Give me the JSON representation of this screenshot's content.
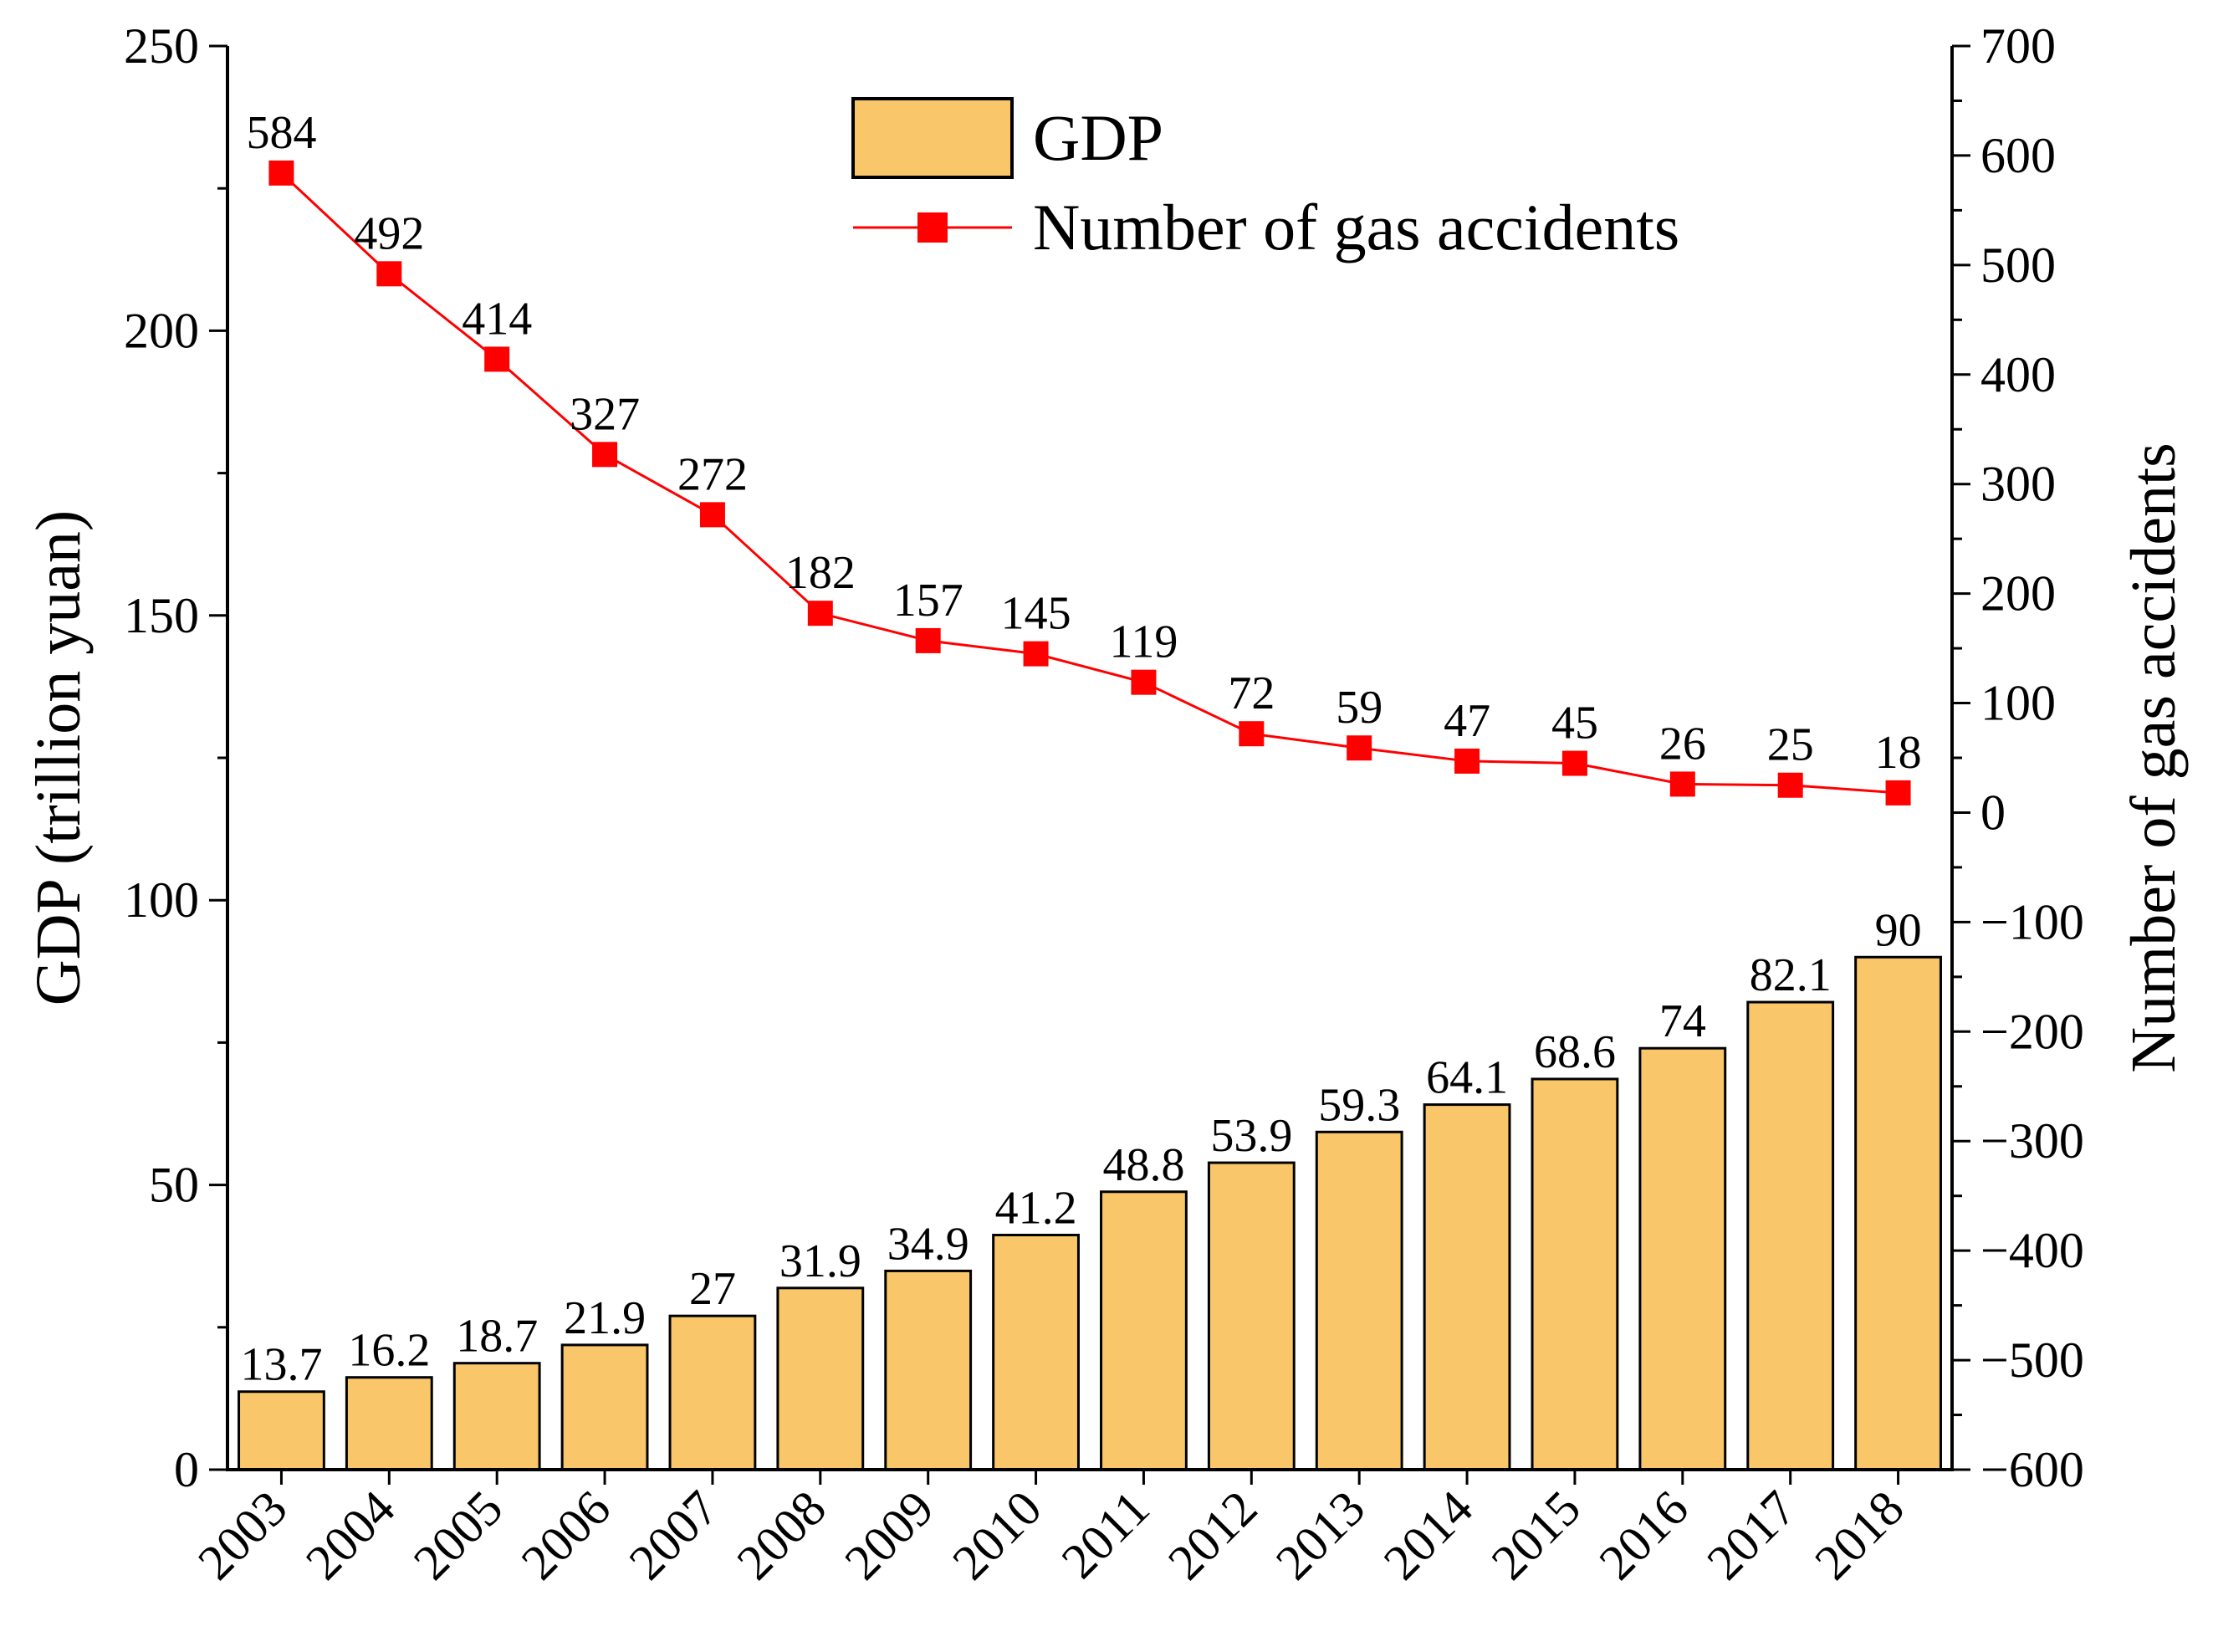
{
  "chart_data": {
    "type": "bar",
    "categories": [
      "2003",
      "2004",
      "2005",
      "2006",
      "2007",
      "2008",
      "2009",
      "2010",
      "2011",
      "2012",
      "2013",
      "2014",
      "2015",
      "2016",
      "2017",
      "2018"
    ],
    "series": [
      {
        "name": "GDP",
        "type": "bar",
        "axis": "left",
        "color": "#F9C76A",
        "values": [
          13.7,
          16.2,
          18.7,
          21.9,
          27,
          31.9,
          34.9,
          41.2,
          48.8,
          53.9,
          59.3,
          64.1,
          68.6,
          74,
          82.1,
          90
        ],
        "labels": [
          "13.7",
          "16.2",
          "18.7",
          "21.9",
          "27",
          "31.9",
          "34.9",
          "41.2",
          "48.8",
          "53.9",
          "59.3",
          "64.1",
          "68.6",
          "74",
          "82.1",
          "90"
        ]
      },
      {
        "name": "Number of gas accidents",
        "type": "line",
        "axis": "right",
        "color": "#FF0000",
        "marker": "square",
        "values": [
          584,
          492,
          414,
          327,
          272,
          182,
          157,
          145,
          119,
          72,
          59,
          47,
          45,
          26,
          25,
          18
        ],
        "labels": [
          "584",
          "492",
          "414",
          "327",
          "272",
          "182",
          "157",
          "145",
          "119",
          "72",
          "59",
          "47",
          "45",
          "26",
          "25",
          "18"
        ]
      }
    ],
    "ylabel": "GDP (trillion yuan)",
    "y2label": "Number of gas accidents",
    "xlabel": "",
    "ylim": [
      0,
      250
    ],
    "y2lim": [
      -600,
      700
    ],
    "yticks": [
      "0",
      "50",
      "100",
      "150",
      "200",
      "250"
    ],
    "y2ticks": [
      "−600",
      "−500",
      "−400",
      "−300",
      "−200",
      "−100",
      "0",
      "100",
      "200",
      "300",
      "400",
      "500",
      "600",
      "700"
    ],
    "grid": false,
    "legend_position": "top-center"
  }
}
